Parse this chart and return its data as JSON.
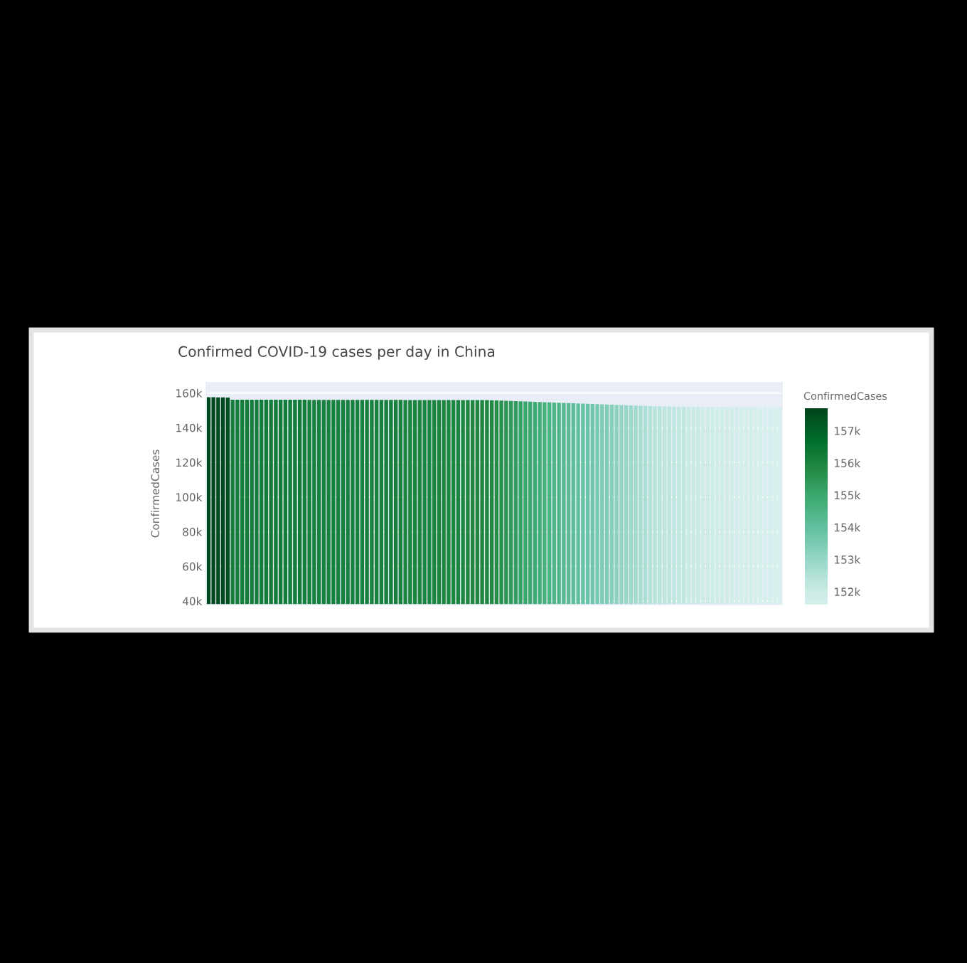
{
  "chart_data": {
    "type": "bar",
    "title": "Confirmed COVID-19 cases per day in China",
    "ylabel": "ConfirmedCases",
    "clabel": "ConfirmedCases",
    "categories": [
      null,
      null,
      null,
      null,
      null,
      null,
      null,
      null,
      null,
      null,
      null,
      null,
      null,
      null,
      null,
      null,
      null,
      null,
      null,
      null,
      null,
      null,
      null,
      null,
      null,
      null,
      null,
      null,
      null,
      null,
      null,
      null,
      null,
      null,
      null,
      null,
      null,
      null,
      null,
      null,
      null,
      null,
      null,
      null,
      null,
      null,
      null,
      null,
      null,
      null,
      null,
      null,
      null,
      null,
      null,
      null,
      null,
      null,
      null,
      null,
      null,
      null,
      null,
      null,
      null,
      null,
      null,
      null,
      null,
      null,
      null,
      null,
      null,
      null,
      null,
      null,
      null,
      null,
      null,
      null,
      null,
      null,
      null,
      null,
      null,
      null,
      null,
      null,
      null,
      null,
      null,
      null,
      null,
      null,
      null,
      null,
      null,
      null,
      null,
      null,
      null,
      null,
      null,
      null,
      null,
      null,
      null,
      null,
      null,
      null,
      null,
      null,
      null,
      null,
      null,
      null,
      null,
      null,
      null,
      null
    ],
    "values": [
      157600,
      157600,
      157500,
      157500,
      157400,
      156200,
      156200,
      156200,
      156200,
      156200,
      156200,
      156200,
      156200,
      156200,
      156200,
      156200,
      156200,
      156200,
      156200,
      156200,
      156200,
      156100,
      156100,
      156100,
      156100,
      156100,
      156100,
      156100,
      156100,
      156100,
      156100,
      156100,
      156100,
      156100,
      156100,
      156100,
      156100,
      156100,
      156100,
      156100,
      156100,
      156000,
      156000,
      156000,
      156000,
      156000,
      156000,
      156000,
      156000,
      156000,
      156000,
      156000,
      156000,
      155900,
      155900,
      155900,
      155900,
      155900,
      155900,
      155800,
      155700,
      155600,
      155500,
      155400,
      155300,
      155200,
      155100,
      155000,
      154900,
      154800,
      154700,
      154600,
      154500,
      154400,
      154300,
      154200,
      154100,
      154000,
      153900,
      153800,
      153700,
      153600,
      153500,
      153400,
      153300,
      153200,
      153100,
      153000,
      152900,
      152800,
      152700,
      152600,
      152500,
      152400,
      152400,
      152300,
      152300,
      152200,
      152200,
      152200,
      152100,
      152100,
      152100,
      152000,
      152000,
      152000,
      151900,
      151900,
      151900,
      151800,
      151800,
      151800,
      151800,
      151800,
      151700,
      151700,
      151700,
      151700,
      151700,
      151700
    ],
    "ylim": [
      38000,
      166000
    ],
    "yticks": [
      {
        "value": 40000,
        "label": "40k"
      },
      {
        "value": 60000,
        "label": "60k"
      },
      {
        "value": 80000,
        "label": "80k"
      },
      {
        "value": 100000,
        "label": "100k"
      },
      {
        "value": 120000,
        "label": "120k"
      },
      {
        "value": 140000,
        "label": "140k"
      },
      {
        "value": 160000,
        "label": "160k"
      }
    ],
    "clim": [
      151600,
      157700
    ],
    "cticks": [
      {
        "value": 152000,
        "label": "152k"
      },
      {
        "value": 153000,
        "label": "153k"
      },
      {
        "value": 154000,
        "label": "154k"
      },
      {
        "value": 155000,
        "label": "155k"
      },
      {
        "value": 156000,
        "label": "156k"
      },
      {
        "value": 157000,
        "label": "157k"
      }
    ],
    "grid": "y",
    "tick_labels": "y"
  }
}
